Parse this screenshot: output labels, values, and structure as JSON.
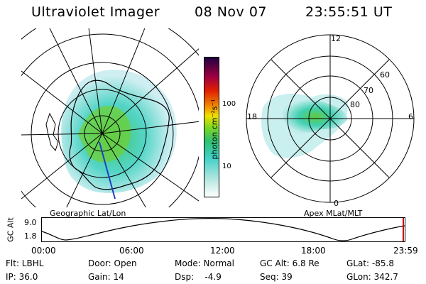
{
  "header": {
    "instrument": "Ultraviolet Imager",
    "date": "08 Nov 07",
    "time": "23:55:51 UT"
  },
  "left_panel": {
    "caption": "Geographic Lat/Lon"
  },
  "right_panel": {
    "caption": "Apex MLat/MLT",
    "mlt_labels": [
      "12",
      "18",
      "6",
      "0"
    ],
    "mlat_labels": [
      "60",
      "70",
      "80"
    ]
  },
  "colorbar": {
    "label": "photon cm⁻²s⁻¹",
    "ticks": [
      "100",
      "10"
    ],
    "scale": "log",
    "colors": [
      "#ffffff",
      "#b8e8e0",
      "#40d0c8",
      "#30c070",
      "#80d820",
      "#f0e000",
      "#f08000",
      "#e02000",
      "#a00040",
      "#200040"
    ]
  },
  "altitude_plot": {
    "ylabel": "GC Alt",
    "yticks": [
      "9.0",
      "1.8"
    ],
    "xticks": [
      "00:00",
      "06:00",
      "12:00",
      "18:00",
      "23:59"
    ],
    "marker_color": "#cc0000"
  },
  "info": {
    "row1": {
      "filter": "Flt: LBHL",
      "door": "Door: Open",
      "mode": "Mode: Normal",
      "gc_alt": "GC Alt: 6.8 Re",
      "glat": "GLat: -85.8"
    },
    "row2": {
      "ip": "IP: 36.0",
      "gain": "Gain: 14",
      "dsp": "Dsp:    -4.9",
      "seq": "Seq: 39",
      "glon": "GLon: 342.7"
    }
  }
}
